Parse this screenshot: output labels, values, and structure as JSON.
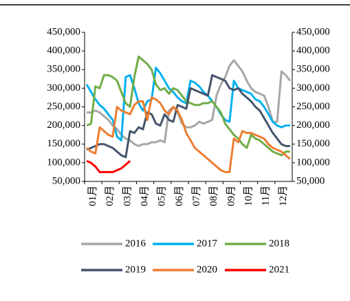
{
  "chart_data": {
    "type": "line",
    "categories": [
      "01月",
      null,
      null,
      null,
      "02月",
      null,
      null,
      null,
      "03月",
      null,
      null,
      null,
      "04月",
      null,
      null,
      null,
      "05月",
      null,
      null,
      null,
      "06月",
      null,
      null,
      null,
      "07月",
      null,
      null,
      null,
      "08月",
      null,
      null,
      null,
      "09月",
      null,
      null,
      null,
      "10月",
      null,
      null,
      null,
      "11月",
      null,
      null,
      null,
      "12月",
      null,
      null,
      null
    ],
    "ylim": [
      50000,
      450000
    ],
    "yticks": [
      {
        "value": 50000,
        "label": "50,000"
      },
      {
        "value": 100000,
        "label": "100,000"
      },
      {
        "value": 150000,
        "label": "150,000"
      },
      {
        "value": 200000,
        "label": "200,000"
      },
      {
        "value": 250000,
        "label": "250,000"
      },
      {
        "value": 300000,
        "label": "300,000"
      },
      {
        "value": 350000,
        "label": "350,000"
      },
      {
        "value": 400000,
        "label": "400,000"
      },
      {
        "value": 450000,
        "label": "450,000"
      }
    ],
    "y2lim": [
      50000,
      450000
    ],
    "y2ticks": [
      {
        "value": 50000,
        "label": "50,000"
      },
      {
        "value": 100000,
        "label": "100,000"
      },
      {
        "value": 150000,
        "label": "150,000"
      },
      {
        "value": 200000,
        "label": "200,000"
      },
      {
        "value": 250000,
        "label": "250,000"
      },
      {
        "value": 300000,
        "label": "300,000"
      },
      {
        "value": 350000,
        "label": "350,000"
      },
      {
        "value": 400000,
        "label": "400,000"
      },
      {
        "value": 450000,
        "label": "450,000"
      }
    ],
    "series": [
      {
        "name": "2016",
        "color": "#a6a6a6",
        "values": [
          235000,
          235000,
          240000,
          235000,
          225000,
          215000,
          200000,
          190000,
          175000,
          165000,
          160000,
          150000,
          145000,
          150000,
          150000,
          155000,
          155000,
          160000,
          155000,
          240000,
          250000,
          235000,
          205000,
          195000,
          195000,
          200000,
          210000,
          205000,
          210000,
          215000,
          280000,
          310000,
          330000,
          360000,
          375000,
          360000,
          345000,
          320000,
          300000,
          290000,
          285000,
          280000,
          250000,
          210000,
          210000,
          345000,
          335000,
          320000
        ]
      },
      {
        "name": "2017",
        "color": "#00b0f0",
        "values": [
          310000,
          290000,
          270000,
          255000,
          245000,
          230000,
          215000,
          170000,
          160000,
          330000,
          335000,
          300000,
          260000,
          240000,
          265000,
          270000,
          355000,
          340000,
          320000,
          300000,
          290000,
          275000,
          265000,
          260000,
          320000,
          315000,
          305000,
          290000,
          280000,
          265000,
          250000,
          230000,
          215000,
          210000,
          320000,
          300000,
          295000,
          290000,
          285000,
          270000,
          265000,
          250000,
          230000,
          210000,
          200000,
          195000,
          200000,
          200000
        ]
      },
      {
        "name": "2018",
        "color": "#70ad47",
        "values": [
          200000,
          205000,
          305000,
          300000,
          335000,
          335000,
          330000,
          320000,
          290000,
          260000,
          250000,
          330000,
          385000,
          375000,
          365000,
          350000,
          310000,
          295000,
          300000,
          285000,
          300000,
          295000,
          280000,
          265000,
          260000,
          255000,
          255000,
          260000,
          260000,
          265000,
          250000,
          235000,
          205000,
          190000,
          175000,
          165000,
          150000,
          140000,
          175000,
          165000,
          160000,
          150000,
          140000,
          130000,
          125000,
          120000,
          130000,
          130000
        ]
      },
      {
        "name": "2019",
        "color": "#44546a",
        "values": [
          135000,
          140000,
          145000,
          150000,
          150000,
          145000,
          140000,
          130000,
          120000,
          115000,
          185000,
          180000,
          195000,
          190000,
          235000,
          230000,
          205000,
          200000,
          230000,
          215000,
          210000,
          255000,
          250000,
          245000,
          300000,
          295000,
          290000,
          285000,
          280000,
          335000,
          330000,
          325000,
          320000,
          300000,
          295000,
          300000,
          285000,
          275000,
          265000,
          250000,
          240000,
          220000,
          200000,
          180000,
          165000,
          150000,
          145000,
          145000
        ]
      },
      {
        "name": "2020",
        "color": "#ed7d31",
        "values": [
          140000,
          130000,
          125000,
          195000,
          185000,
          175000,
          170000,
          250000,
          240000,
          235000,
          230000,
          255000,
          265000,
          265000,
          215000,
          275000,
          270000,
          260000,
          240000,
          230000,
          250000,
          240000,
          215000,
          180000,
          160000,
          140000,
          130000,
          120000,
          110000,
          100000,
          90000,
          80000,
          75000,
          75000,
          165000,
          155000,
          185000,
          180000,
          180000,
          175000,
          170000,
          165000,
          150000,
          140000,
          135000,
          130000,
          120000,
          110000
        ]
      },
      {
        "name": "2021",
        "color": "#ff0000",
        "values": [
          105000,
          100000,
          90000,
          75000,
          75000,
          75000,
          75000,
          80000,
          85000,
          95000,
          105000,
          null,
          null,
          null,
          null,
          null,
          null,
          null,
          null,
          null,
          null,
          null,
          null,
          null,
          null,
          null,
          null,
          null,
          null,
          null,
          null,
          null,
          null,
          null,
          null,
          null,
          null,
          null,
          null,
          null,
          null,
          null,
          null,
          null,
          null,
          null,
          null,
          null
        ]
      }
    ]
  }
}
